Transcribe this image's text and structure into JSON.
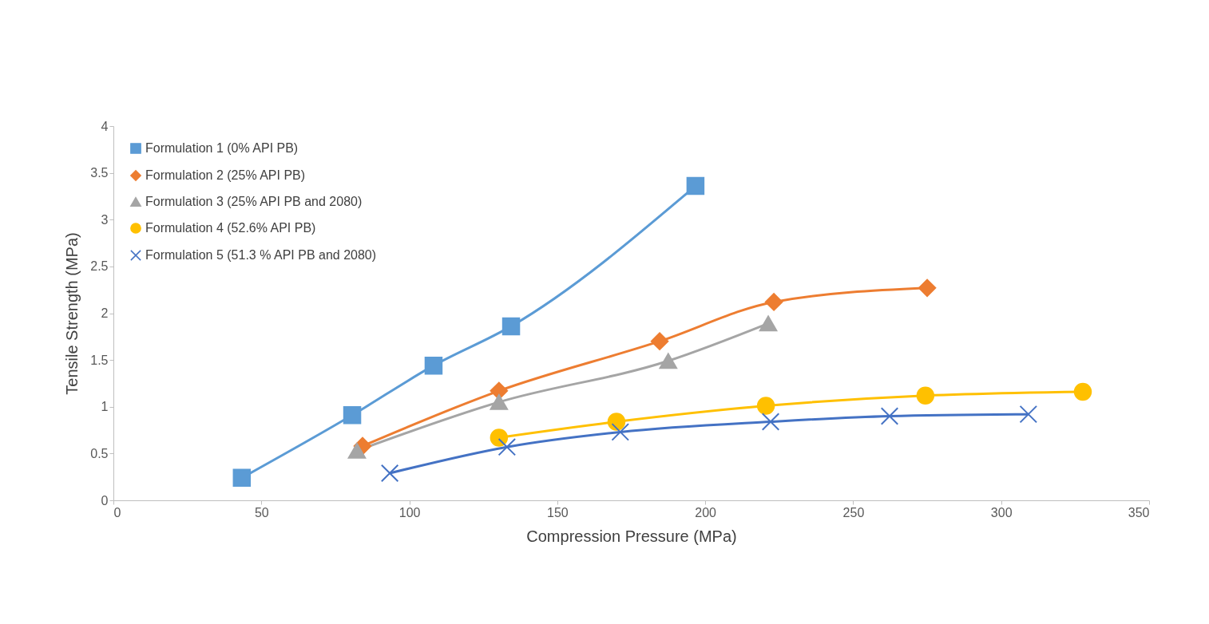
{
  "chart_data": {
    "type": "line",
    "xlabel": "Compression Pressure (MPa)",
    "ylabel": "Tensile Strength (MPa)",
    "xlim": [
      0,
      350
    ],
    "xticks": [
      0,
      50,
      100,
      150,
      200,
      250,
      300,
      350
    ],
    "ylim": [
      0,
      4
    ],
    "yticks": [
      0,
      0.5,
      1,
      1.5,
      2,
      2.5,
      3,
      3.5,
      4
    ],
    "grid": false,
    "legend": "top left",
    "line_style": "solid",
    "series": [
      {
        "name": "Formulation 1 (0% API PB)",
        "color": "#5b9bd5",
        "marker": "square",
        "x": [
          43.4,
          80.7,
          108.2,
          134.4,
          196.7
        ],
        "values": [
          0.24,
          0.91,
          1.44,
          1.86,
          3.36
        ]
      },
      {
        "name": "Formulation 2 (25% API PB)",
        "color": "#ed7d31",
        "marker": "diamond",
        "x": [
          84.2,
          130.3,
          184.6,
          223.2,
          275
        ],
        "values": [
          0.58,
          1.17,
          1.7,
          2.12,
          2.27
        ]
      },
      {
        "name": "Formulation 3 (25% API PB and 2080)",
        "color": "#a5a5a5",
        "marker": "triangle",
        "x": [
          82.3,
          130.3,
          187.5,
          221.3
        ],
        "values": [
          0.53,
          1.05,
          1.49,
          1.89
        ]
      },
      {
        "name": "Formulation 4 (52.6% API PB)",
        "color": "#ffc000",
        "marker": "circle",
        "x": [
          130.3,
          170,
          220.5,
          274.4,
          327.6
        ],
        "values": [
          0.67,
          0.84,
          1.01,
          1.12,
          1.16
        ]
      },
      {
        "name": "Formulation 5 (51.3 % API PB and 2080)",
        "color": "#4472c4",
        "marker": "cross",
        "x": [
          93.4,
          133,
          171.3,
          222.1,
          262.3,
          309.2
        ],
        "values": [
          0.29,
          0.57,
          0.73,
          0.84,
          0.9,
          0.92
        ]
      }
    ]
  }
}
